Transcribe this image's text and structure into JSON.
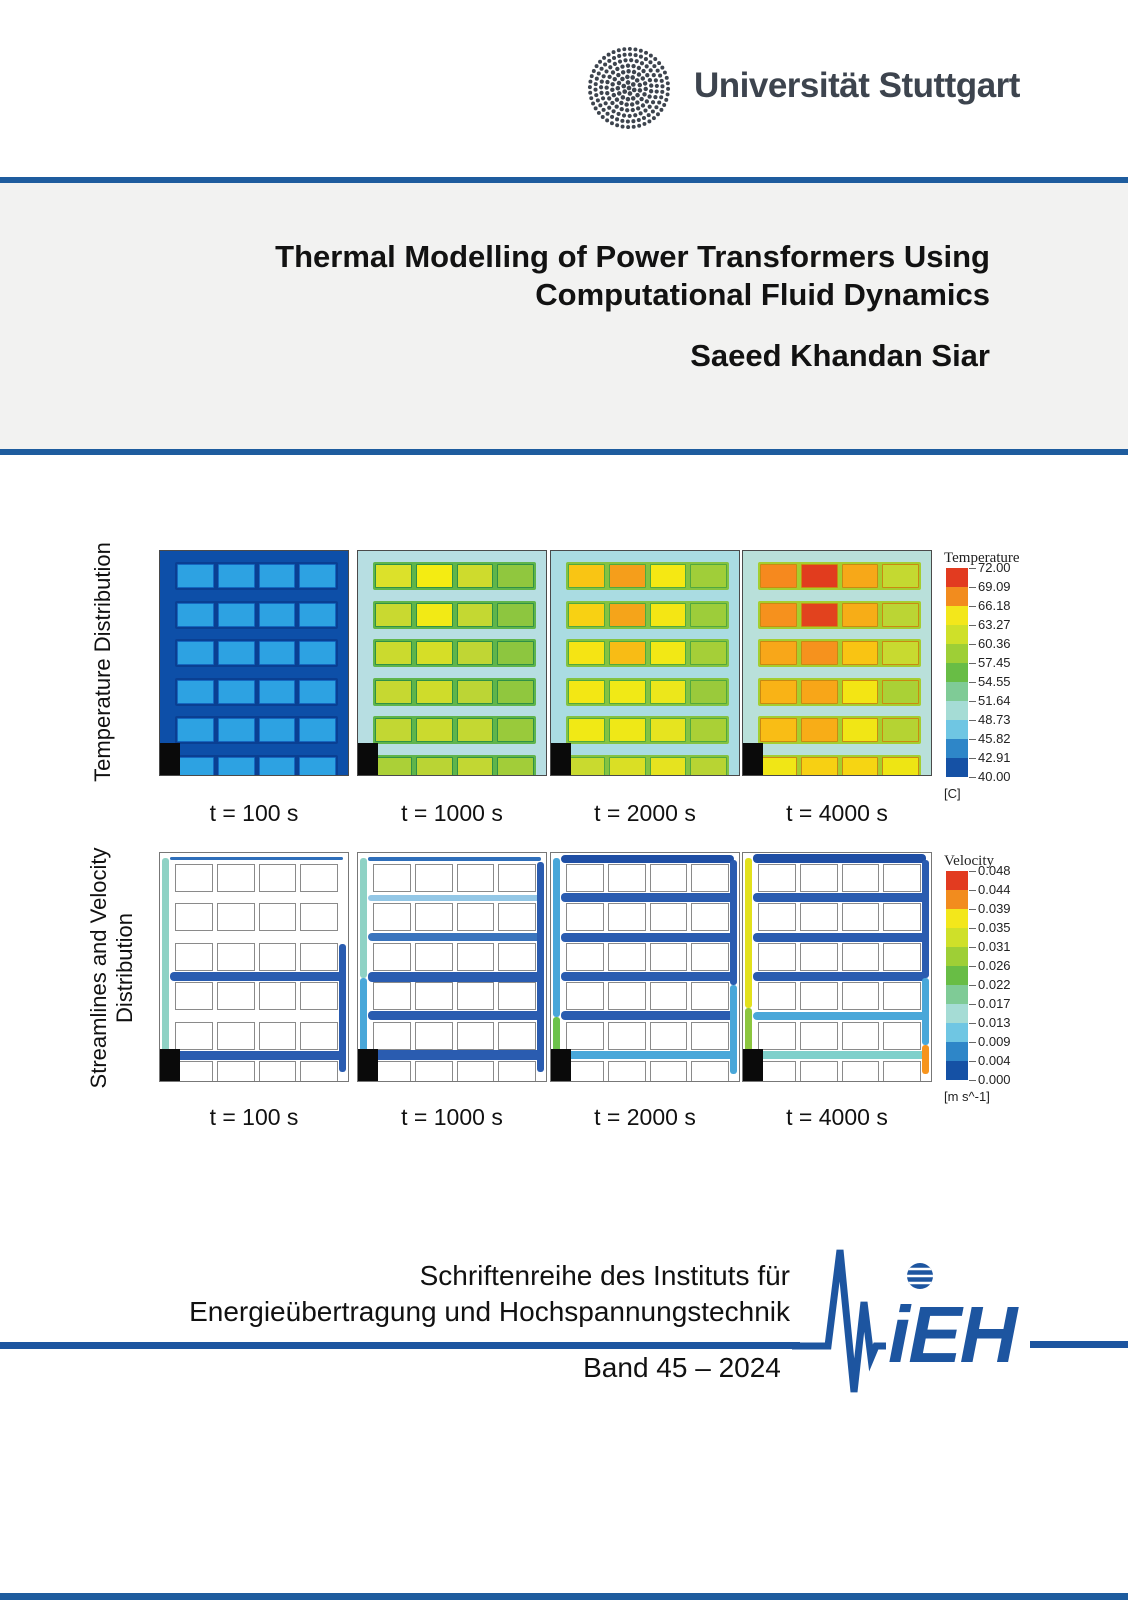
{
  "header": {
    "university_name": "Universität Stuttgart"
  },
  "title_block": {
    "title_line1": "Thermal Modelling of Power Transformers Using",
    "title_line2": "Computational Fluid Dynamics",
    "author": "Saeed Khandan Siar"
  },
  "figure": {
    "temperature_row_label": "Temperature Distribution",
    "velocity_row_label_line1": "Streamlines and Velocity",
    "velocity_row_label_line2": "Distribution",
    "time_labels": [
      "t = 100 s",
      "t = 1000 s",
      "t = 2000 s",
      "t = 4000 s"
    ],
    "temperature_legend": {
      "title": "Temperature",
      "unit": "[C]",
      "ticks": [
        "72.00",
        "69.09",
        "66.18",
        "63.27",
        "60.36",
        "57.45",
        "54.55",
        "51.64",
        "48.73",
        "45.82",
        "42.91",
        "40.00"
      ],
      "colors": [
        "#e23b20",
        "#f28c1e",
        "#f3e71b",
        "#cfe029",
        "#9ecf36",
        "#68bd45",
        "#7fcb96",
        "#a5dcd5",
        "#6fc6e3",
        "#2e86c8",
        "#1551a5"
      ]
    },
    "velocity_legend": {
      "title": "Velocity",
      "unit": "[m s^-1]",
      "ticks": [
        "0.048",
        "0.044",
        "0.039",
        "0.035",
        "0.031",
        "0.026",
        "0.022",
        "0.017",
        "0.013",
        "0.009",
        "0.004",
        "0.000"
      ],
      "colors": [
        "#e23b20",
        "#f28c1e",
        "#f3e71b",
        "#cfe029",
        "#9ecf36",
        "#68bd45",
        "#7fcb96",
        "#a5dcd5",
        "#6fc6e3",
        "#2e86c8",
        "#1551a5"
      ]
    },
    "temperature_panels": [
      {
        "duct": "#0d4fa8",
        "row_bg": "#0a3f92",
        "cell_border": "#1467c0",
        "cells": [
          [
            "#2da2e2",
            "#2da2e2",
            "#2da2e2",
            "#2da2e2"
          ],
          [
            "#2da2e2",
            "#2da2e2",
            "#2da2e2",
            "#2da2e2"
          ],
          [
            "#2da2e2",
            "#2da2e2",
            "#2da2e2",
            "#2da2e2"
          ],
          [
            "#2da2e2",
            "#2da2e2",
            "#2da2e2",
            "#2da2e2"
          ],
          [
            "#2da2e2",
            "#2da2e2",
            "#2da2e2",
            "#2da2e2"
          ],
          [
            "#2da2e2",
            "#2da2e2",
            "#2da2e2",
            "#2da2e2"
          ]
        ]
      },
      {
        "duct": "#b7dee2",
        "row_bg": "#5fb54a",
        "cell_border": "#2f9147",
        "cells": [
          [
            "#dce12a",
            "#f4ec12",
            "#cedb2d",
            "#90c73e"
          ],
          [
            "#c9d930",
            "#f2ea15",
            "#c4d832",
            "#8dc63f"
          ],
          [
            "#cbda2e",
            "#d6de27",
            "#c0d634",
            "#8dc63f"
          ],
          [
            "#c6d831",
            "#cfdc2b",
            "#bcd535",
            "#90c73e"
          ],
          [
            "#c2d733",
            "#cbda2e",
            "#c4d832",
            "#99ca3b"
          ],
          [
            "#abd037",
            "#bad434",
            "#c2d733",
            "#a2cd39"
          ]
        ]
      },
      {
        "duct": "#aadce2",
        "row_bg": "#84c341",
        "cell_border": "#51a83f",
        "cells": [
          [
            "#f9c514",
            "#f59e1b",
            "#f5e813",
            "#a0ce39"
          ],
          [
            "#f8d113",
            "#f5a41a",
            "#f4e614",
            "#9dcd3a"
          ],
          [
            "#f5e414",
            "#f8bc15",
            "#f2e815",
            "#a5cf38"
          ],
          [
            "#f3e714",
            "#f1e916",
            "#ece71b",
            "#9aca3b"
          ],
          [
            "#f1e915",
            "#efe817",
            "#e6e41f",
            "#aad036"
          ],
          [
            "#c9da2f",
            "#dadf25",
            "#e6e31f",
            "#b8d433"
          ]
        ]
      },
      {
        "duct": "#b9e0da",
        "row_bg": "#a5ce2f",
        "cell_border": "#c98a12",
        "cells": [
          [
            "#f6891e",
            "#e13c1e",
            "#f7a818",
            "#c4d931"
          ],
          [
            "#f6911d",
            "#e2421e",
            "#f7ad17",
            "#bbd534"
          ],
          [
            "#f8a719",
            "#f6921d",
            "#f9c413",
            "#c8da30"
          ],
          [
            "#f9b316",
            "#f8a618",
            "#f3e514",
            "#aad136"
          ],
          [
            "#f9bd15",
            "#f8ad17",
            "#f1e615",
            "#b5d333"
          ],
          [
            "#f0e616",
            "#f7d013",
            "#f6d513",
            "#eee514"
          ]
        ]
      }
    ],
    "velocity_panels": [
      {
        "channels": [
          {
            "c": "#2f6fbb",
            "h": 3
          },
          null,
          null,
          {
            "c": "#2a5cb0",
            "h": 9
          },
          null,
          {
            "c": "#2a5cb0",
            "h": 9
          }
        ],
        "left": [
          {
            "c": "#8fd2c5",
            "from": 2,
            "to": 97
          }
        ],
        "right": [
          {
            "c": "#2a5cb0",
            "from": 40,
            "to": 96
          }
        ]
      },
      {
        "channels": [
          {
            "c": "#2f6fbb",
            "h": 4
          },
          {
            "c": "#93c7e6",
            "h": 6
          },
          {
            "c": "#3a74bd",
            "h": 8
          },
          {
            "c": "#2a5cb0",
            "h": 10
          },
          {
            "c": "#2a5cb0",
            "h": 9
          },
          {
            "c": "#2a5cb0",
            "h": 10
          }
        ],
        "left": [
          {
            "c": "#8fd2c5",
            "from": 2,
            "to": 55
          },
          {
            "c": "#49a7d9",
            "from": 55,
            "to": 97
          }
        ],
        "right": [
          {
            "c": "#2a5cb0",
            "from": 4,
            "to": 96
          }
        ]
      },
      {
        "channels": [
          {
            "c": "#1f4fa5",
            "h": 8
          },
          {
            "c": "#2a5cb0",
            "h": 9
          },
          {
            "c": "#2a5cb0",
            "h": 9
          },
          {
            "c": "#2a5cb0",
            "h": 9
          },
          {
            "c": "#2a5cb0",
            "h": 9
          },
          {
            "c": "#49a7d9",
            "h": 8
          }
        ],
        "left": [
          {
            "c": "#49a7d9",
            "from": 2,
            "to": 72
          },
          {
            "c": "#6cc24a",
            "from": 72,
            "to": 97
          }
        ],
        "right": [
          {
            "c": "#2a5cb0",
            "from": 3,
            "to": 58
          },
          {
            "c": "#49a7d9",
            "from": 58,
            "to": 97
          }
        ]
      },
      {
        "channels": [
          {
            "c": "#1f4fa5",
            "h": 9
          },
          {
            "c": "#2a5cb0",
            "h": 9
          },
          {
            "c": "#2a5cb0",
            "h": 9
          },
          {
            "c": "#2a5cb0",
            "h": 9
          },
          {
            "c": "#49a7d9",
            "h": 8
          },
          {
            "c": "#7fd0cb",
            "h": 8
          }
        ],
        "left": [
          {
            "c": "#e3e11d",
            "from": 2,
            "to": 68
          },
          {
            "c": "#8cc63f",
            "from": 68,
            "to": 97
          }
        ],
        "right": [
          {
            "c": "#2a5cb0",
            "from": 3,
            "to": 55
          },
          {
            "c": "#49a7d9",
            "from": 55,
            "to": 84
          },
          {
            "c": "#f7941d",
            "from": 84,
            "to": 97
          }
        ]
      }
    ]
  },
  "footer": {
    "series_line1": "Schriftenreihe des Instituts für",
    "series_line2": "Energieübertragung und Hochspannungstechnik",
    "band_label": "Band 45 – 2024",
    "logo_text": "iEH"
  },
  "colors": {
    "rule_blue": "#1e5c9e",
    "title_band_bg": "#f2f2f1",
    "university_logo_gray": "#3d444e",
    "ieh_blue": "#1d55a0"
  }
}
